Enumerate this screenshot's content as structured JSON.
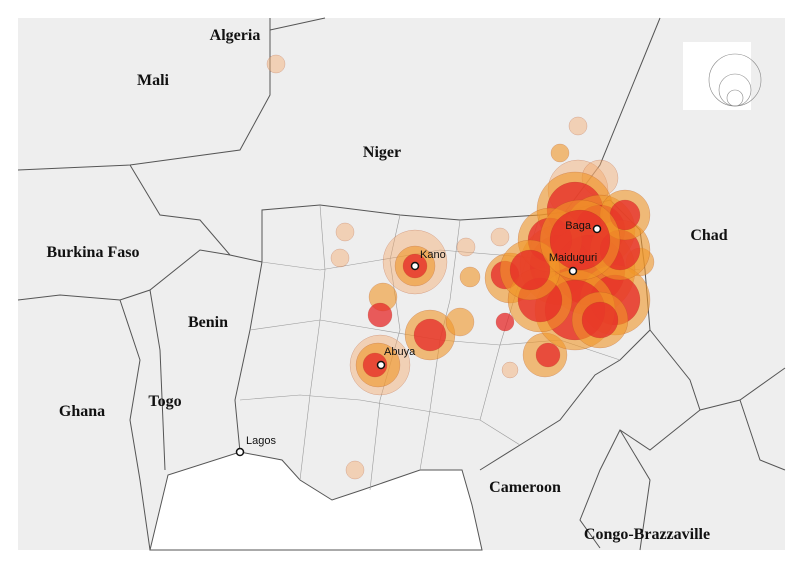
{
  "countries": [
    "Algeria",
    "Mali",
    "Niger",
    "Burkina Faso",
    "Benin",
    "Ghana",
    "Togo",
    "Chad",
    "Cameroon",
    "Congo-Brazzaville"
  ],
  "cities": [
    "Kano",
    "Baga",
    "Maiduguri",
    "Abuya",
    "Lagos"
  ]
}
